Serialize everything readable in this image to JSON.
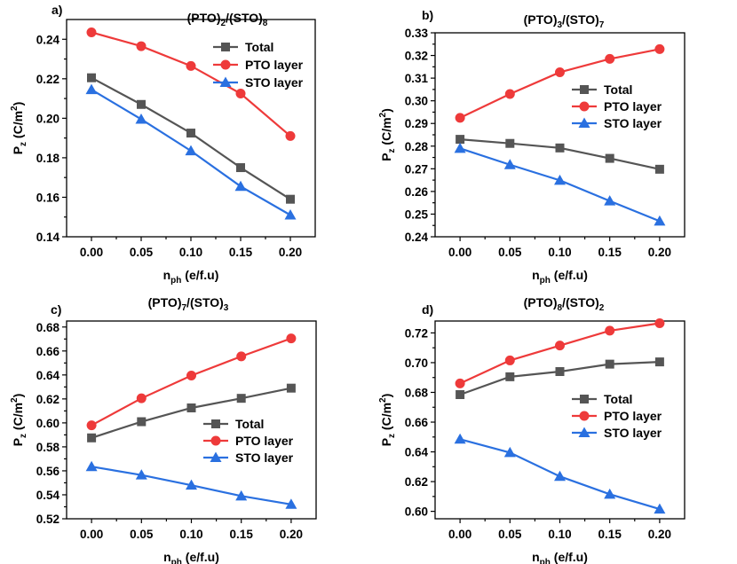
{
  "figure": {
    "colors": {
      "Total": "#555555",
      "PTO layer": "#ee3a3a",
      "STO layer": "#2a70e0"
    }
  },
  "chart_data": [
    {
      "type": "line",
      "panel": "a)",
      "title": {
        "base1": "(PTO)",
        "sub1": "2",
        "sep": "/",
        "base2": "(STO)",
        "sub2": "8"
      },
      "xlabel": {
        "base": "n",
        "sub": "ph",
        "rest": " (e/f.u)"
      },
      "ylabel": {
        "base": "P",
        "sub": "z",
        "rest": " (C/m",
        "sup": "2",
        "end": ")"
      },
      "x": [
        0.0,
        0.05,
        0.1,
        0.15,
        0.2
      ],
      "xticks": [
        "0.00",
        "0.05",
        "0.10",
        "0.15",
        "0.20"
      ],
      "yticks": [
        0.14,
        0.16,
        0.18,
        0.2,
        0.22,
        0.24
      ],
      "ytick_labels": [
        "0.14",
        "0.16",
        "0.18",
        "0.20",
        "0.22",
        "0.24"
      ],
      "xlim": [
        -0.025,
        0.225
      ],
      "ylim": [
        0.14,
        0.25
      ],
      "legend": "top-right",
      "series": [
        {
          "name": "Total",
          "marker": "square",
          "values": [
            0.2205,
            0.207,
            0.1925,
            0.175,
            0.159
          ]
        },
        {
          "name": "PTO layer",
          "marker": "circle",
          "values": [
            0.2435,
            0.2365,
            0.2265,
            0.2125,
            0.191
          ]
        },
        {
          "name": "STO layer",
          "marker": "triangle",
          "values": [
            0.2145,
            0.1995,
            0.1835,
            0.1655,
            0.151
          ]
        }
      ]
    },
    {
      "type": "line",
      "panel": "b)",
      "title": {
        "base1": "(PTO)",
        "sub1": "3",
        "sep": "/",
        "base2": "(STO)",
        "sub2": "7"
      },
      "xlabel": {
        "base": "n",
        "sub": "ph",
        "rest": " (e/f.u)"
      },
      "ylabel": {
        "base": "P",
        "sub": "z",
        "rest": " (C/m",
        "sup": "2",
        "end": ")"
      },
      "x": [
        0.0,
        0.05,
        0.1,
        0.15,
        0.2
      ],
      "xticks": [
        "0.00",
        "0.05",
        "0.10",
        "0.15",
        "0.20"
      ],
      "yticks": [
        0.24,
        0.25,
        0.26,
        0.27,
        0.28,
        0.29,
        0.3,
        0.31,
        0.32,
        0.33
      ],
      "ytick_labels": [
        "0.24",
        "0.25",
        "0.26",
        "0.27",
        "0.28",
        "0.29",
        "0.30",
        "0.31",
        "0.32",
        "0.33"
      ],
      "xlim": [
        -0.025,
        0.225
      ],
      "ylim": [
        0.24,
        0.33
      ],
      "legend": "center-right",
      "series": [
        {
          "name": "Total",
          "marker": "square",
          "values": [
            0.283,
            0.2812,
            0.2792,
            0.2746,
            0.2698
          ]
        },
        {
          "name": "PTO layer",
          "marker": "circle",
          "values": [
            0.2925,
            0.303,
            0.3126,
            0.3185,
            0.3228
          ]
        },
        {
          "name": "STO layer",
          "marker": "triangle",
          "values": [
            0.279,
            0.2718,
            0.2649,
            0.2558,
            0.2469
          ]
        }
      ]
    },
    {
      "type": "line",
      "panel": "c)",
      "title": {
        "base1": "(PTO)",
        "sub1": "7",
        "sep": "/",
        "base2": "(STO)",
        "sub2": "3"
      },
      "xlabel": {
        "base": "n",
        "sub": "ph",
        "rest": " (e/f.u)"
      },
      "ylabel": {
        "base": "P",
        "sub": "z",
        "rest": " (C/m",
        "sup": "2",
        "end": ")"
      },
      "x": [
        0.0,
        0.05,
        0.1,
        0.15,
        0.2
      ],
      "xticks": [
        "0.00",
        "0.05",
        "0.10",
        "0.15",
        "0.20"
      ],
      "yticks": [
        0.52,
        0.54,
        0.56,
        0.58,
        0.6,
        0.62,
        0.64,
        0.66,
        0.68
      ],
      "ytick_labels": [
        "0.52",
        "0.54",
        "0.56",
        "0.58",
        "0.60",
        "0.62",
        "0.64",
        "0.66",
        "0.68"
      ],
      "xlim": [
        -0.025,
        0.225
      ],
      "ylim": [
        0.52,
        0.685
      ],
      "legend": "center-right",
      "series": [
        {
          "name": "Total",
          "marker": "square",
          "values": [
            0.5875,
            0.601,
            0.6125,
            0.6205,
            0.629
          ]
        },
        {
          "name": "PTO layer",
          "marker": "circle",
          "values": [
            0.598,
            0.6205,
            0.6395,
            0.6555,
            0.6705
          ]
        },
        {
          "name": "STO layer",
          "marker": "triangle",
          "values": [
            0.5635,
            0.5565,
            0.548,
            0.539,
            0.532
          ]
        }
      ]
    },
    {
      "type": "line",
      "panel": "d)",
      "title": {
        "base1": "(PTO)",
        "sub1": "8",
        "sep": "/",
        "base2": "(STO)",
        "sub2": "2"
      },
      "xlabel": {
        "base": "n",
        "sub": "ph",
        "rest": " (e/f.u)"
      },
      "ylabel": {
        "base": "P",
        "sub": "z",
        "rest": " (C/m",
        "sup": "2",
        "end": ")"
      },
      "x": [
        0.0,
        0.05,
        0.1,
        0.15,
        0.2
      ],
      "xticks": [
        "0.00",
        "0.05",
        "0.10",
        "0.15",
        "0.20"
      ],
      "yticks": [
        0.6,
        0.62,
        0.64,
        0.66,
        0.68,
        0.7,
        0.72
      ],
      "ytick_labels": [
        "0.60",
        "0.62",
        "0.64",
        "0.66",
        "0.68",
        "0.70",
        "0.72"
      ],
      "xlim": [
        -0.025,
        0.225
      ],
      "ylim": [
        0.595,
        0.728
      ],
      "legend": "center-right",
      "series": [
        {
          "name": "Total",
          "marker": "square",
          "values": [
            0.6785,
            0.6905,
            0.694,
            0.699,
            0.7005
          ]
        },
        {
          "name": "PTO layer",
          "marker": "circle",
          "values": [
            0.686,
            0.7015,
            0.7115,
            0.7215,
            0.7265
          ]
        },
        {
          "name": "STO layer",
          "marker": "triangle",
          "values": [
            0.6485,
            0.6395,
            0.6235,
            0.6115,
            0.6015
          ]
        }
      ]
    }
  ]
}
